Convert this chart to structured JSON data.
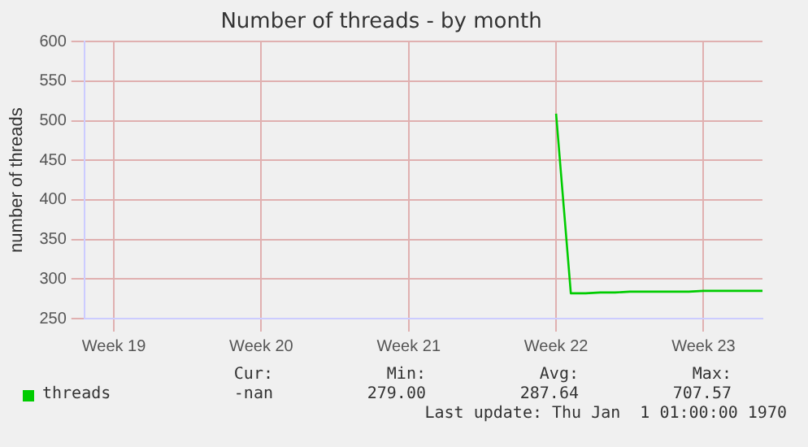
{
  "chart_data": {
    "type": "line",
    "title": "Number of threads - by month",
    "ylabel": "number of threads",
    "categories": [
      null,
      null,
      "Week 19",
      null,
      null,
      null,
      null,
      null,
      null,
      null,
      null,
      null,
      "Week 20",
      null,
      null,
      null,
      null,
      null,
      null,
      null,
      null,
      null,
      "Week 21",
      null,
      null,
      null,
      null,
      null,
      null,
      null,
      null,
      null,
      "Week 22",
      null,
      null,
      null,
      null,
      null,
      null,
      null,
      null,
      null,
      "Week 23",
      null,
      null,
      null,
      null
    ],
    "series": [
      {
        "name": "threads",
        "color": "#00cc00",
        "values": [
          null,
          null,
          null,
          null,
          null,
          null,
          null,
          null,
          null,
          null,
          null,
          null,
          null,
          null,
          null,
          null,
          null,
          null,
          null,
          null,
          null,
          null,
          null,
          null,
          null,
          null,
          null,
          null,
          null,
          null,
          null,
          null,
          509,
          282,
          282,
          283,
          283,
          284,
          284,
          284,
          284,
          284,
          285,
          285,
          285,
          285,
          285
        ]
      }
    ],
    "ylim": [
      250,
      600
    ],
    "yticks": [
      250,
      300,
      350,
      400,
      450,
      500,
      550,
      600
    ],
    "grid": true,
    "legend": "bottom left",
    "marker": "none",
    "line_style": "solid",
    "annotations": [
      "Cur:",
      "Min:",
      "Avg:",
      "Max:",
      "-nan",
      "279.00",
      "287.64",
      "707.57",
      "Last update: Thu Jan  1 01:00:00 1970"
    ]
  }
}
